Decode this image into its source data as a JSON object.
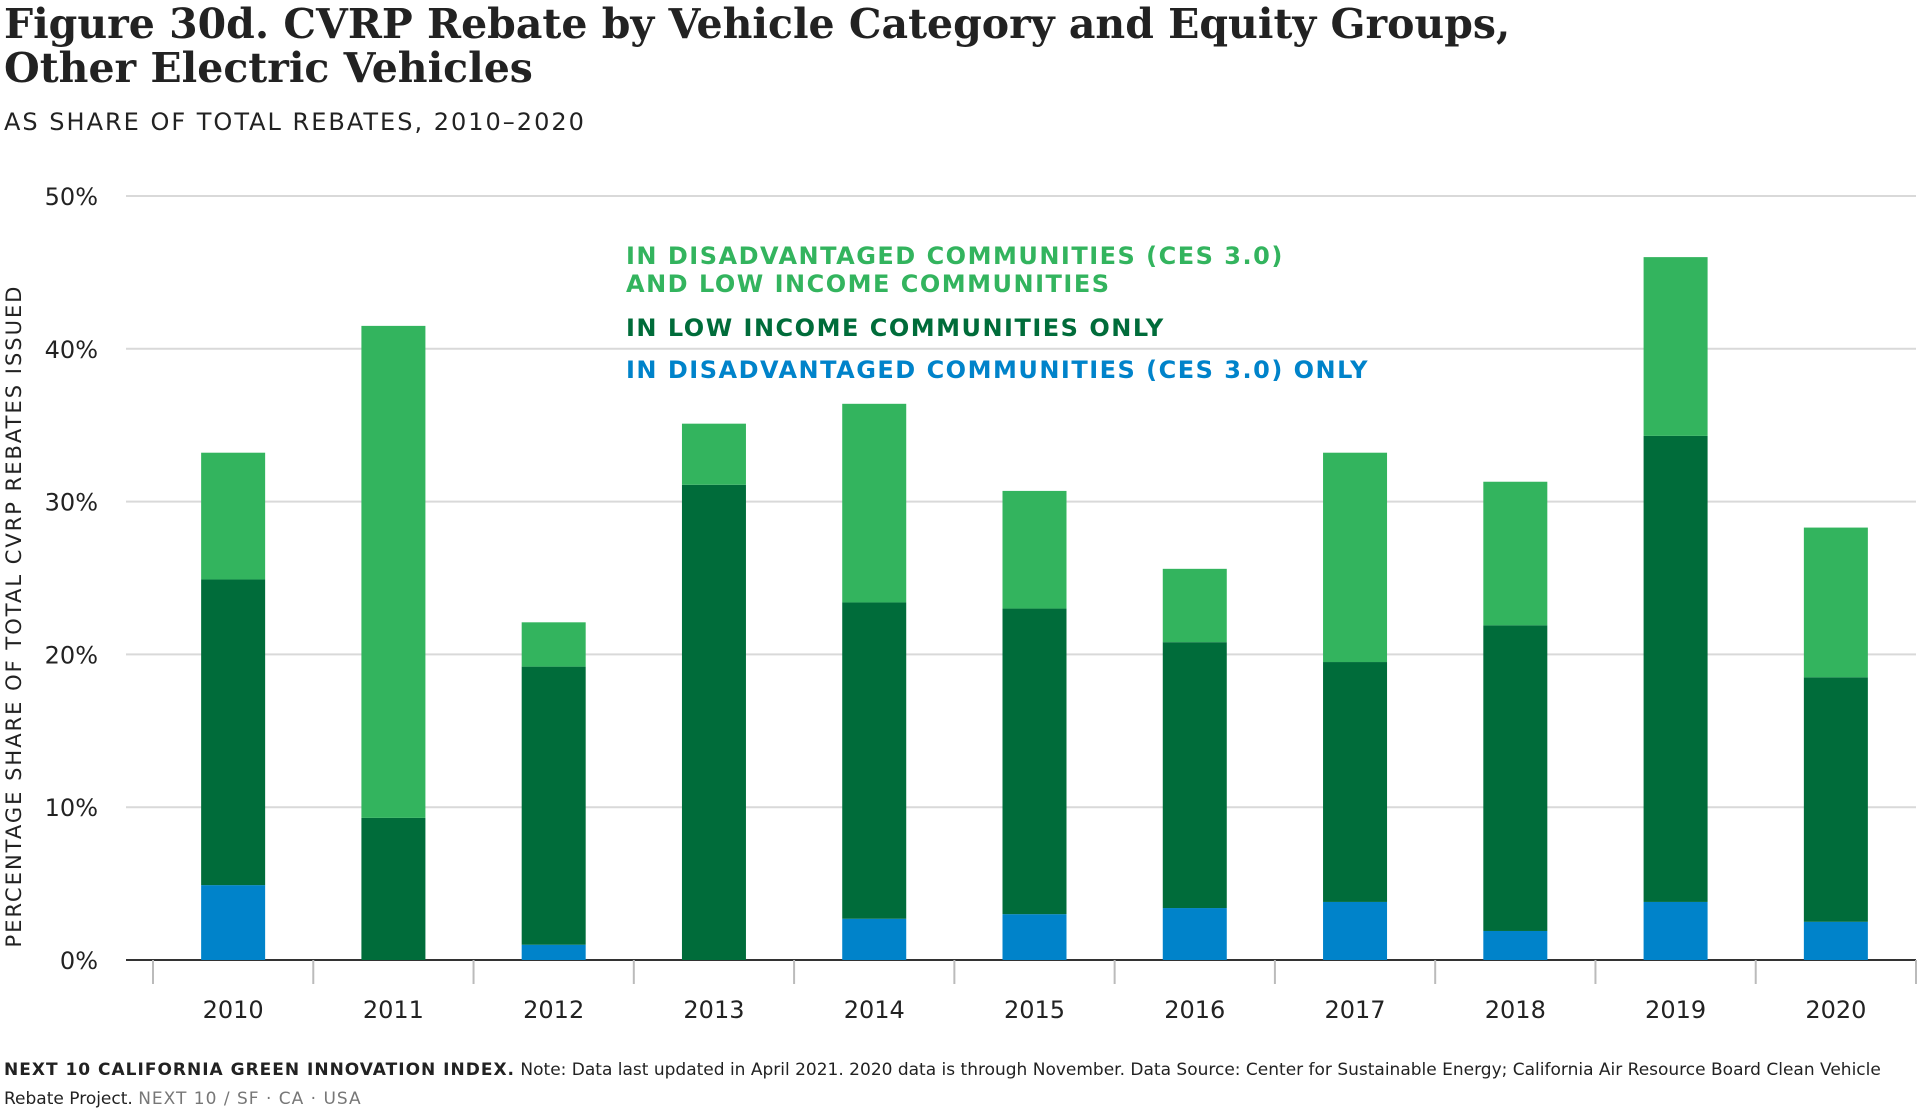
{
  "chart_data": {
    "type": "bar",
    "stacked": true,
    "title_line1": "Figure 30d. CVRP Rebate by Vehicle Category and Equity Groups,",
    "title_line2": "Other Electric Vehicles",
    "subtitle": "AS SHARE OF TOTAL REBATES, 2010–2020",
    "ylabel": "PERCENTAGE SHARE OF TOTAL CVRP REBATES ISSUED",
    "xlabel": "",
    "ylim": [
      0,
      50
    ],
    "yticks": [
      "0%",
      "10%",
      "20%",
      "30%",
      "40%",
      "50%"
    ],
    "grid": true,
    "legend_position": "top-center, inside plot",
    "categories": [
      "2010",
      "2011",
      "2012",
      "2013",
      "2014",
      "2015",
      "2016",
      "2017",
      "2018",
      "2019",
      "2020"
    ],
    "series": [
      {
        "name": "IN DISADVANTAGED COMMUNITIES (CES 3.0) ONLY",
        "color": "#0083CA",
        "values": [
          4.9,
          0,
          1.0,
          0,
          2.7,
          3.0,
          3.4,
          3.8,
          1.9,
          3.8,
          2.5
        ]
      },
      {
        "name": "IN LOW INCOME COMMUNITIES ONLY",
        "color": "#006C3A",
        "values": [
          20.0,
          9.3,
          18.2,
          31.1,
          20.7,
          20.0,
          17.4,
          15.7,
          20.0,
          30.5,
          16.0
        ]
      },
      {
        "name_line1": "IN DISADVANTAGED COMMUNITIES (CES 3.0)",
        "name_line2": "AND LOW INCOME COMMUNITIES",
        "color": "#33B45E",
        "values": [
          8.3,
          32.2,
          2.9,
          4.0,
          13.0,
          7.7,
          4.8,
          13.7,
          9.4,
          11.7,
          9.8
        ]
      }
    ]
  },
  "footer": {
    "org": "NEXT 10 CALIFORNIA GREEN INNOVATION INDEX.",
    "note": "Note: Data last updated in April 2021. 2020 data is through November. Data Source: Center for Sustainable Energy; California Air Resource Board Clean Vehicle Rebate Project.",
    "tag": "NEXT 10 / SF · CA · USA"
  },
  "colors": {
    "grid": "#d9d9d9",
    "axis": "#333333",
    "text": "#222222"
  }
}
